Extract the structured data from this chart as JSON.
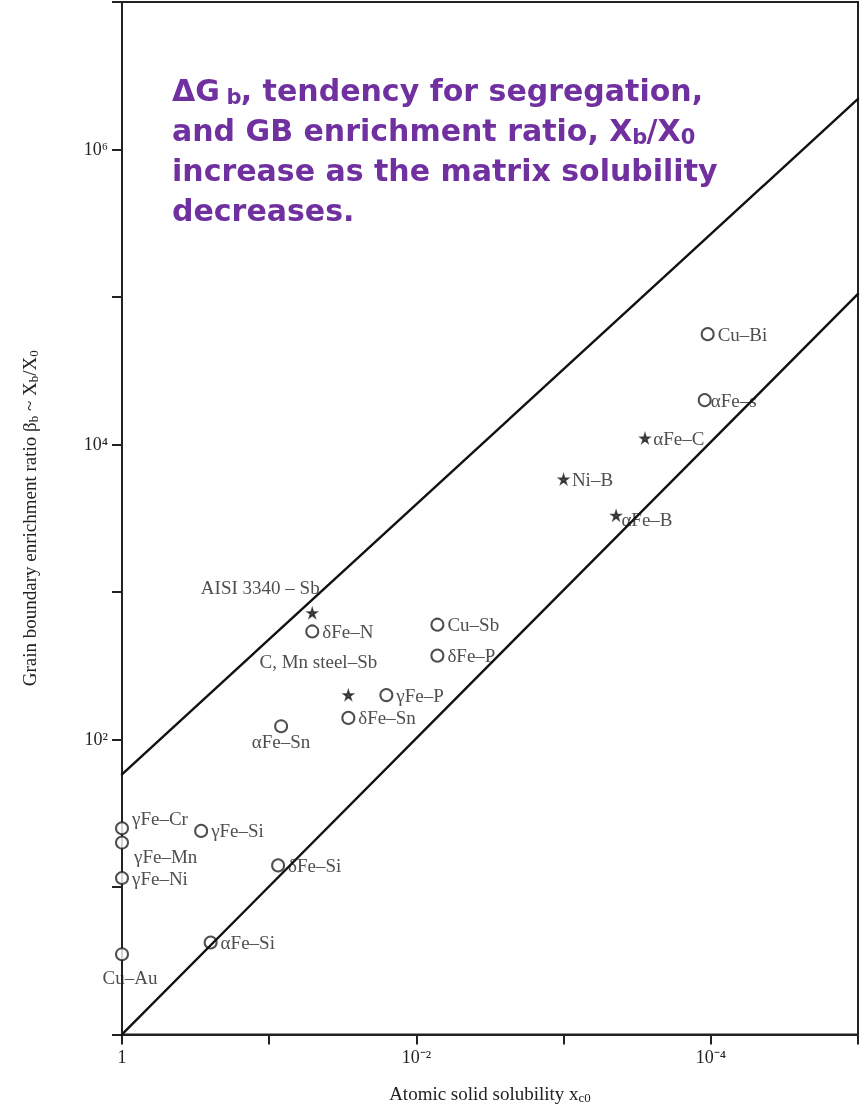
{
  "chart_data": {
    "type": "scatter",
    "xlabel": "Atomic solid solubility x$_{c0}$",
    "ylabel": "Grain boundary enrichment ratio β$_{b}$ ~ X$_{b}$/X$_{0}$",
    "log": "xy",
    "xlim": [
      1,
      1e-05
    ],
    "xticks": [
      {
        "value": 1,
        "label": "1"
      },
      {
        "value": 0.1,
        "label": null
      },
      {
        "value": 0.01,
        "label": "10⁻²"
      },
      {
        "value": 0.001,
        "label": null
      },
      {
        "value": 0.0001,
        "label": "10⁻⁴"
      },
      {
        "value": 1e-05,
        "label": null
      }
    ],
    "ylim": [
      1,
      10000000
    ],
    "yticks": [
      {
        "value": 1,
        "label": null
      },
      {
        "value": 10,
        "label": null
      },
      {
        "value": 100,
        "label": "10²"
      },
      {
        "value": 1000,
        "label": null
      },
      {
        "value": 10000,
        "label": "10⁴"
      },
      {
        "value": 100000,
        "label": null
      },
      {
        "value": 1000000,
        "label": "10⁶"
      },
      {
        "value": 10000000,
        "label": null
      }
    ],
    "grid": false,
    "annotations": [
      "ΔG$_{b}$, tendency for segregation, and GB enrichment ratio, X$_{b}$/X$_{0}$ increase as the matrix solubility decreases."
    ],
    "series": [
      {
        "marker": "circle",
        "color": "#222222",
        "x": [
          0.00011,
          1,
          1,
          1,
          0.29,
          0.087,
          0.25,
          1
        ],
        "values": [
          20000,
          25,
          20,
          11.5,
          24,
          14,
          4.2,
          3.5
        ],
        "value_labels": [
          "αFe–s",
          "γFe–Cr",
          "γFe–Mn",
          "γFe–Ni",
          "γFe–Si",
          "δFe–Si",
          "αFe–Si",
          "Cu–Au"
        ]
      },
      {
        "marker": "circle",
        "color": "#222222",
        "x": [
          0.000105,
          0.051,
          0.0072,
          0.0072,
          0.016,
          0.029,
          0.083
        ],
        "values": [
          56000,
          540,
          600,
          370,
          200,
          140,
          123
        ],
        "value_labels": [
          "Cu–Bi",
          "δFe–N",
          "Cu–Sb",
          "δFe–P",
          "γFe–P",
          "δFe–Sn",
          "αFe–Sn"
        ]
      },
      {
        "marker": "star",
        "color": "#222222",
        "x": [
          0.00028,
          0.001,
          0.00044,
          0.051,
          0.029
        ],
        "values": [
          11000,
          5800,
          3300,
          720,
          200
        ],
        "value_labels": [
          "αFe–C",
          "Ni–B",
          "αFe–B",
          "AISI 3340 – Sb",
          "C, Mn steel–Sb"
        ]
      },
      {
        "type": "line",
        "marker": "none",
        "color": "#111111",
        "x": [
          1,
          1e-05
        ],
        "values": [
          58,
          2200000
        ]
      },
      {
        "type": "line",
        "marker": "none",
        "color": "#111111",
        "x": [
          1,
          1e-05
        ],
        "values": [
          1,
          105000
        ]
      }
    ]
  }
}
